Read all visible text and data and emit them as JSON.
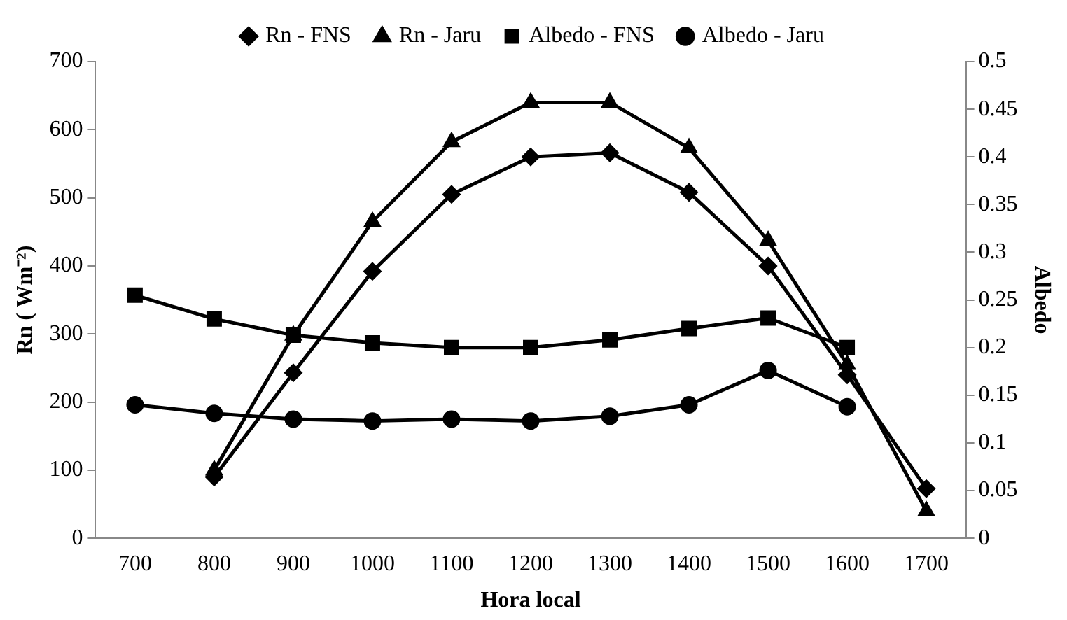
{
  "chart_data": {
    "type": "line",
    "xlabel": "Hora local",
    "ylabel": "Rn ( Wm⁻²)",
    "y2label": "Albedo",
    "categories": [
      "700",
      "800",
      "900",
      "1000",
      "1100",
      "1200",
      "1300",
      "1400",
      "1500",
      "1600",
      "1700"
    ],
    "ylim": [
      0,
      700
    ],
    "yticks": [
      0,
      100,
      200,
      300,
      400,
      500,
      600,
      700
    ],
    "y2lim": [
      0,
      0.5
    ],
    "y2ticks": [
      0,
      0.05,
      0.1,
      0.15,
      0.2,
      0.25,
      0.3,
      0.35,
      0.4,
      0.45,
      0.5
    ],
    "grid": false,
    "legend": "top",
    "line_style": "solid",
    "series": [
      {
        "name": "Rn - FNS",
        "color": "#000000",
        "marker": "diamond",
        "values": [
          null,
          90,
          243,
          392,
          505,
          560,
          566,
          508,
          400,
          240,
          73
        ]
      },
      {
        "name": "Rn - Jaru",
        "color": "#000000",
        "marker": "triangle",
        "values": [
          null,
          100,
          298,
          465,
          582,
          640,
          640,
          573,
          437,
          255,
          40
        ]
      },
      {
        "name": "Albedo - FNS",
        "color": "#000000",
        "marker": "square",
        "axis": "y2",
        "values": [
          0.255,
          0.23,
          0.213,
          0.205,
          0.2,
          0.2,
          0.208,
          0.22,
          0.231,
          0.2,
          null
        ]
      },
      {
        "name": "Albedo - Jaru",
        "color": "#000000",
        "marker": "circle",
        "axis": "y2",
        "values": [
          0.14,
          0.131,
          0.125,
          0.123,
          0.125,
          0.123,
          0.128,
          0.14,
          0.176,
          0.138,
          null
        ]
      }
    ]
  }
}
